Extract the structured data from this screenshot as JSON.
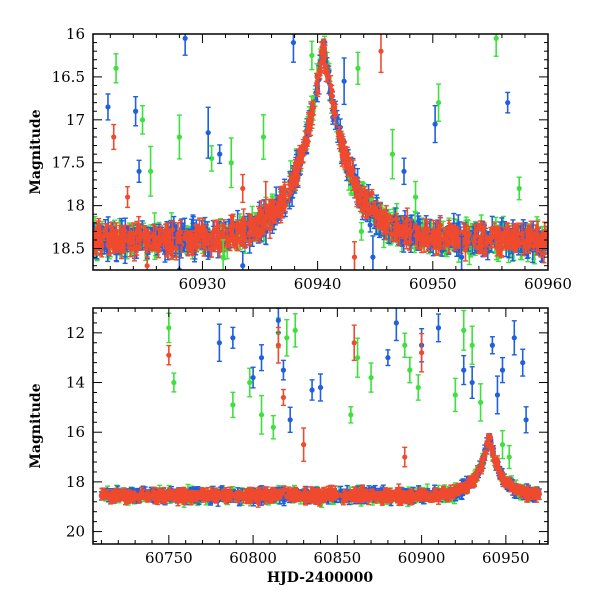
{
  "chart_data": [
    {
      "type": "scatter",
      "title": "",
      "xlabel": "",
      "ylabel": "Magnitude",
      "xlim": [
        60920.5,
        60960
      ],
      "ylim": [
        18.75,
        16
      ],
      "y_inverted": true,
      "x_ticks": [
        60930,
        60940,
        60950,
        60960
      ],
      "x_tick_labels": [
        "60930",
        "60940",
        "60950",
        "60960"
      ],
      "y_ticks": [
        16,
        16.5,
        17,
        17.5,
        18,
        18.5
      ],
      "y_tick_labels": [
        "16",
        "16.5",
        "17",
        "17.5",
        "18",
        "18.5"
      ],
      "baseline_mag": 18.4,
      "peak": {
        "x": 60940.5,
        "y": 16.1
      },
      "series": [
        {
          "name": "blue",
          "color": "#1f5fe0",
          "outliers": [
            [
              60921.8,
              16.85
            ],
            [
              60924.2,
              16.9
            ],
            [
              60924.5,
              17.6
            ],
            [
              60928.5,
              16.05
            ],
            [
              60930.5,
              17.15
            ],
            [
              60931.5,
              17.4
            ],
            [
              60937.9,
              16.1
            ],
            [
              60942.3,
              16.55
            ],
            [
              60947.5,
              17.6
            ],
            [
              60950.2,
              17.05
            ],
            [
              60956.5,
              16.8
            ],
            [
              60928.0,
              18.75
            ],
            [
              60933.5,
              18.7
            ],
            [
              60944.8,
              18.6
            ],
            [
              60952.5,
              18.6
            ]
          ]
        },
        {
          "name": "green",
          "color": "#3ee03e",
          "outliers": [
            [
              60922.5,
              16.4
            ],
            [
              60924.8,
              17.0
            ],
            [
              60925.5,
              17.6
            ],
            [
              60928.0,
              17.2
            ],
            [
              60930.8,
              17.45
            ],
            [
              60932.5,
              17.5
            ],
            [
              60935.3,
              17.2
            ],
            [
              60939.5,
              16.25
            ],
            [
              60943.5,
              16.4
            ],
            [
              60946.5,
              17.4
            ],
            [
              60948.5,
              17.9
            ],
            [
              60950.5,
              16.8
            ],
            [
              60955.5,
              16.05
            ],
            [
              60957.5,
              17.8
            ],
            [
              60943.8,
              18.3
            ],
            [
              60931.8,
              18.6
            ]
          ]
        },
        {
          "name": "red",
          "color": "#f04a2e",
          "outliers": [
            [
              60922.3,
              17.2
            ],
            [
              60923.5,
              17.9
            ],
            [
              60933.5,
              17.8
            ],
            [
              60935.5,
              18.0
            ],
            [
              60945.5,
              16.2
            ],
            [
              60949.5,
              18.3
            ],
            [
              60943.2,
              18.6
            ],
            [
              60925.2,
              18.7
            ]
          ]
        }
      ]
    },
    {
      "type": "scatter",
      "title": "",
      "xlabel": "HJD-2400000",
      "ylabel": "Magnitude",
      "xlim": [
        60705,
        60975
      ],
      "ylim": [
        20.5,
        11
      ],
      "y_inverted": true,
      "x_ticks": [
        60750,
        60800,
        60850,
        60900,
        60950
      ],
      "x_tick_labels": [
        "60750",
        "60800",
        "60850",
        "60900",
        "60950"
      ],
      "y_ticks": [
        12,
        14,
        16,
        18,
        20
      ],
      "y_tick_labels": [
        "12",
        "14",
        "16",
        "18",
        "20"
      ],
      "baseline_mag": 18.55,
      "peak": {
        "x": 60940,
        "y": 16.2
      },
      "series": [
        {
          "name": "blue",
          "color": "#1f5fe0",
          "outliers": [
            [
              60780,
              12.4
            ],
            [
              60788,
              12.2
            ],
            [
              60800,
              13.8
            ],
            [
              60805,
              13.0
            ],
            [
              60815,
              11.5
            ],
            [
              60818,
              13.5
            ],
            [
              60822,
              15.5
            ],
            [
              60835,
              14.3
            ],
            [
              60840,
              14.2
            ],
            [
              60880,
              13.0
            ],
            [
              60885,
              11.6
            ],
            [
              60900,
              12.5
            ],
            [
              60910,
              11.8
            ],
            [
              60925,
              13.5
            ],
            [
              60930,
              14.0
            ],
            [
              60942,
              12.5
            ],
            [
              60948,
              13.5
            ],
            [
              60955,
              12.2
            ],
            [
              60960,
              13.2
            ],
            [
              60962,
              15.5
            ],
            [
              60945,
              14.5
            ]
          ]
        },
        {
          "name": "green",
          "color": "#3ee03e",
          "outliers": [
            [
              60750,
              11.8
            ],
            [
              60753,
              14.0
            ],
            [
              60788,
              14.9
            ],
            [
              60798,
              14.0
            ],
            [
              60805,
              15.3
            ],
            [
              60812,
              15.8
            ],
            [
              60815,
              12.0
            ],
            [
              60820,
              12.2
            ],
            [
              60825,
              11.9
            ],
            [
              60862,
              13.0
            ],
            [
              60870,
              13.8
            ],
            [
              60890,
              12.5
            ],
            [
              60893,
              13.5
            ],
            [
              60898,
              14.2
            ],
            [
              60920,
              14.5
            ],
            [
              60925,
              11.9
            ],
            [
              60930,
              12.5
            ],
            [
              60935,
              14.8
            ],
            [
              60948,
              16.5
            ],
            [
              60952,
              17.0
            ],
            [
              60858,
              15.3
            ]
          ]
        },
        {
          "name": "red",
          "color": "#f04a2e",
          "outliers": [
            [
              60750,
              12.9
            ],
            [
              60815,
              12.5
            ],
            [
              60818,
              14.6
            ],
            [
              60860,
              12.4
            ],
            [
              60900,
              12.8
            ],
            [
              60830,
              16.5
            ],
            [
              60890,
              17.0
            ]
          ]
        }
      ]
    }
  ]
}
